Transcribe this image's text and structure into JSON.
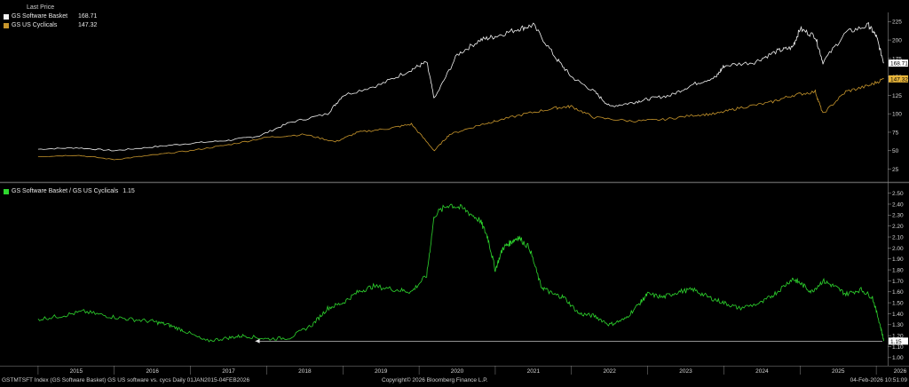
{
  "panels": {
    "top": {
      "legend_header": "Last Price",
      "series": [
        {
          "name": "GS Software Basket",
          "last": "168.71",
          "color": "#f2f2f2"
        },
        {
          "name": "GS US Cyclicals",
          "last": "147.32",
          "color": "#c8962c"
        }
      ]
    },
    "bottom": {
      "series": [
        {
          "name": "GS Software Basket / GS US Cyclicals",
          "last": "1.15",
          "color": "#2ed82e"
        }
      ]
    }
  },
  "footer": {
    "left": "GSTMTSFT Index (GS Software Basket) GS US software vs. cycs Daily 01JAN2015-04FEB2026",
    "center": "Copyright© 2026 Bloomberg Finance L.P.",
    "right": "04-Feb-2026 10:51:09"
  },
  "chart_data": [
    {
      "type": "line",
      "series": [
        {
          "name": "GS Software Basket",
          "color": "#f2f2f2",
          "x": [
            2015.0,
            2015.5,
            2016.0,
            2016.5,
            2017.0,
            2017.5,
            2017.9,
            2018.3,
            2018.8,
            2019.0,
            2019.5,
            2019.9,
            2020.1,
            2020.2,
            2020.5,
            2020.8,
            2021.0,
            2021.3,
            2021.5,
            2021.8,
            2022.0,
            2022.3,
            2022.5,
            2022.8,
            2023.0,
            2023.3,
            2023.6,
            2023.9,
            2024.0,
            2024.4,
            2024.7,
            2024.9,
            2025.0,
            2025.2,
            2025.3,
            2025.6,
            2025.9,
            2026.0,
            2026.1
          ],
          "y": [
            52,
            54,
            50,
            55,
            60,
            64,
            70,
            88,
            100,
            125,
            140,
            160,
            170,
            120,
            180,
            200,
            205,
            215,
            220,
            175,
            150,
            130,
            110,
            115,
            120,
            125,
            140,
            150,
            165,
            170,
            185,
            190,
            215,
            205,
            170,
            210,
            220,
            205,
            168.71
          ]
        },
        {
          "name": "GS US Cyclicals",
          "color": "#c8962c",
          "x": [
            2015.0,
            2015.5,
            2016.0,
            2016.5,
            2017.0,
            2017.5,
            2018.0,
            2018.5,
            2018.9,
            2019.2,
            2019.6,
            2019.9,
            2020.2,
            2020.4,
            2020.8,
            2021.0,
            2021.4,
            2021.8,
            2022.0,
            2022.3,
            2022.8,
            2023.2,
            2023.6,
            2023.9,
            2024.2,
            2024.6,
            2024.9,
            2025.2,
            2025.3,
            2025.6,
            2025.9,
            2026.1
          ],
          "y": [
            42,
            44,
            38,
            44,
            50,
            58,
            68,
            72,
            62,
            75,
            80,
            86,
            50,
            72,
            85,
            90,
            100,
            108,
            110,
            95,
            90,
            92,
            98,
            100,
            108,
            115,
            125,
            130,
            100,
            130,
            138,
            147.32
          ]
        }
      ],
      "ylim": [
        10,
        235
      ],
      "yticks": [
        25,
        50,
        75,
        100,
        125,
        150,
        175,
        200,
        225
      ],
      "grid": false
    },
    {
      "type": "line",
      "series": [
        {
          "name": "GS Software Basket / GS US Cyclicals",
          "color": "#2ed82e",
          "x": [
            2015.0,
            2015.3,
            2015.6,
            2015.9,
            2016.2,
            2016.5,
            2016.7,
            2016.9,
            2017.2,
            2017.5,
            2017.7,
            2018.0,
            2018.3,
            2018.6,
            2018.8,
            2019.0,
            2019.2,
            2019.4,
            2019.7,
            2019.9,
            2020.1,
            2020.2,
            2020.4,
            2020.6,
            2020.8,
            2020.9,
            2021.0,
            2021.1,
            2021.2,
            2021.3,
            2021.45,
            2021.6,
            2021.75,
            2021.9,
            2022.1,
            2022.3,
            2022.5,
            2022.7,
            2022.9,
            2023.0,
            2023.2,
            2023.4,
            2023.6,
            2023.8,
            2024.0,
            2024.2,
            2024.5,
            2024.7,
            2024.9,
            2025.0,
            2025.15,
            2025.3,
            2025.45,
            2025.6,
            2025.8,
            2025.95,
            2026.05,
            2026.1
          ],
          "y": [
            1.35,
            1.38,
            1.42,
            1.38,
            1.35,
            1.33,
            1.3,
            1.25,
            1.15,
            1.18,
            1.2,
            1.17,
            1.18,
            1.3,
            1.45,
            1.5,
            1.6,
            1.65,
            1.62,
            1.6,
            1.75,
            2.3,
            2.4,
            2.35,
            2.25,
            2.1,
            1.8,
            2.0,
            2.05,
            2.1,
            2.0,
            1.65,
            1.58,
            1.55,
            1.4,
            1.38,
            1.3,
            1.35,
            1.5,
            1.58,
            1.55,
            1.6,
            1.62,
            1.55,
            1.5,
            1.45,
            1.5,
            1.6,
            1.72,
            1.68,
            1.6,
            1.7,
            1.65,
            1.58,
            1.62,
            1.55,
            1.3,
            1.15
          ]
        }
      ],
      "ylim": [
        0.95,
        2.57
      ],
      "yticks": [
        1.0,
        1.1,
        1.2,
        1.3,
        1.4,
        1.5,
        1.6,
        1.7,
        1.8,
        1.9,
        2.0,
        2.1,
        2.2,
        2.3,
        2.4,
        2.5
      ],
      "annotation": "1.15",
      "grid": false
    }
  ],
  "x_axis": {
    "labels": [
      "2015",
      "2016",
      "2017",
      "2018",
      "2019",
      "2020",
      "2021",
      "2022",
      "2023",
      "2024",
      "2025",
      "2026"
    ],
    "range": [
      2014.5,
      2026.15
    ]
  },
  "colors": {
    "background": "#000000",
    "axis": "#8a8a8a",
    "divider": "#5a5a5a",
    "label_bg_green": "#ffffff",
    "label_bg_gold": "#e8b53a"
  }
}
